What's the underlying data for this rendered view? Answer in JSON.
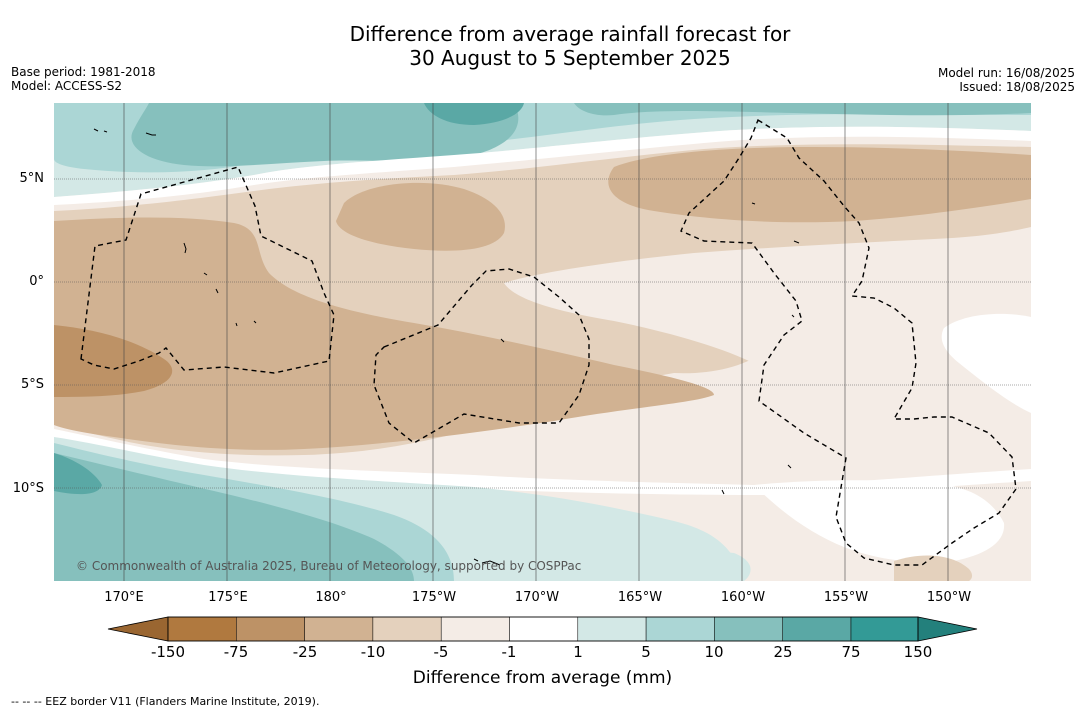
{
  "title": {
    "line1": "Difference from average rainfall forecast for",
    "line2": "30 August to 5 September 2025"
  },
  "meta_left": {
    "base_period": "Base period: 1981-2018",
    "model": "Model: ACCESS-S2"
  },
  "meta_right": {
    "model_run": "Model run: 16/08/2025",
    "issued": "Issued: 18/08/2025"
  },
  "map": {
    "credit": "© Commonwealth of Australia 2025, Bureau of Meteorology, supported by COSPPac",
    "lat_labels": [
      "5°N",
      "0°",
      "5°S",
      "10°S"
    ],
    "lon_labels": [
      "170°E",
      "175°E",
      "180°",
      "175°W",
      "170°W",
      "165°W",
      "160°W",
      "155°W",
      "150°W"
    ],
    "lon_range": [
      "167°E",
      "146°W"
    ],
    "lat_range": [
      "8.5°N",
      "14.5°S"
    ]
  },
  "legend": {
    "title": "Difference from average (mm)",
    "ticks": [
      "-150",
      "-75",
      "-25",
      "-10",
      "-5",
      "-1",
      "1",
      "5",
      "10",
      "25",
      "75",
      "150"
    ],
    "colors": {
      "below_min": "#9a6631",
      "c1": "#b0793f",
      "c2": "#bd9266",
      "c3": "#d1b292",
      "c4": "#e4d1bd",
      "c5": "#f4ece6",
      "c6": "#ffffff",
      "c7": "#d3e8e6",
      "c8": "#abd6d5",
      "c9": "#86c0bd",
      "c10": "#5aa8a5",
      "c11": "#339a96",
      "above_max": "#23807c"
    }
  },
  "footnote": "--  --  -- EEZ border V11 (Flanders Marine Institute, 2019)."
}
